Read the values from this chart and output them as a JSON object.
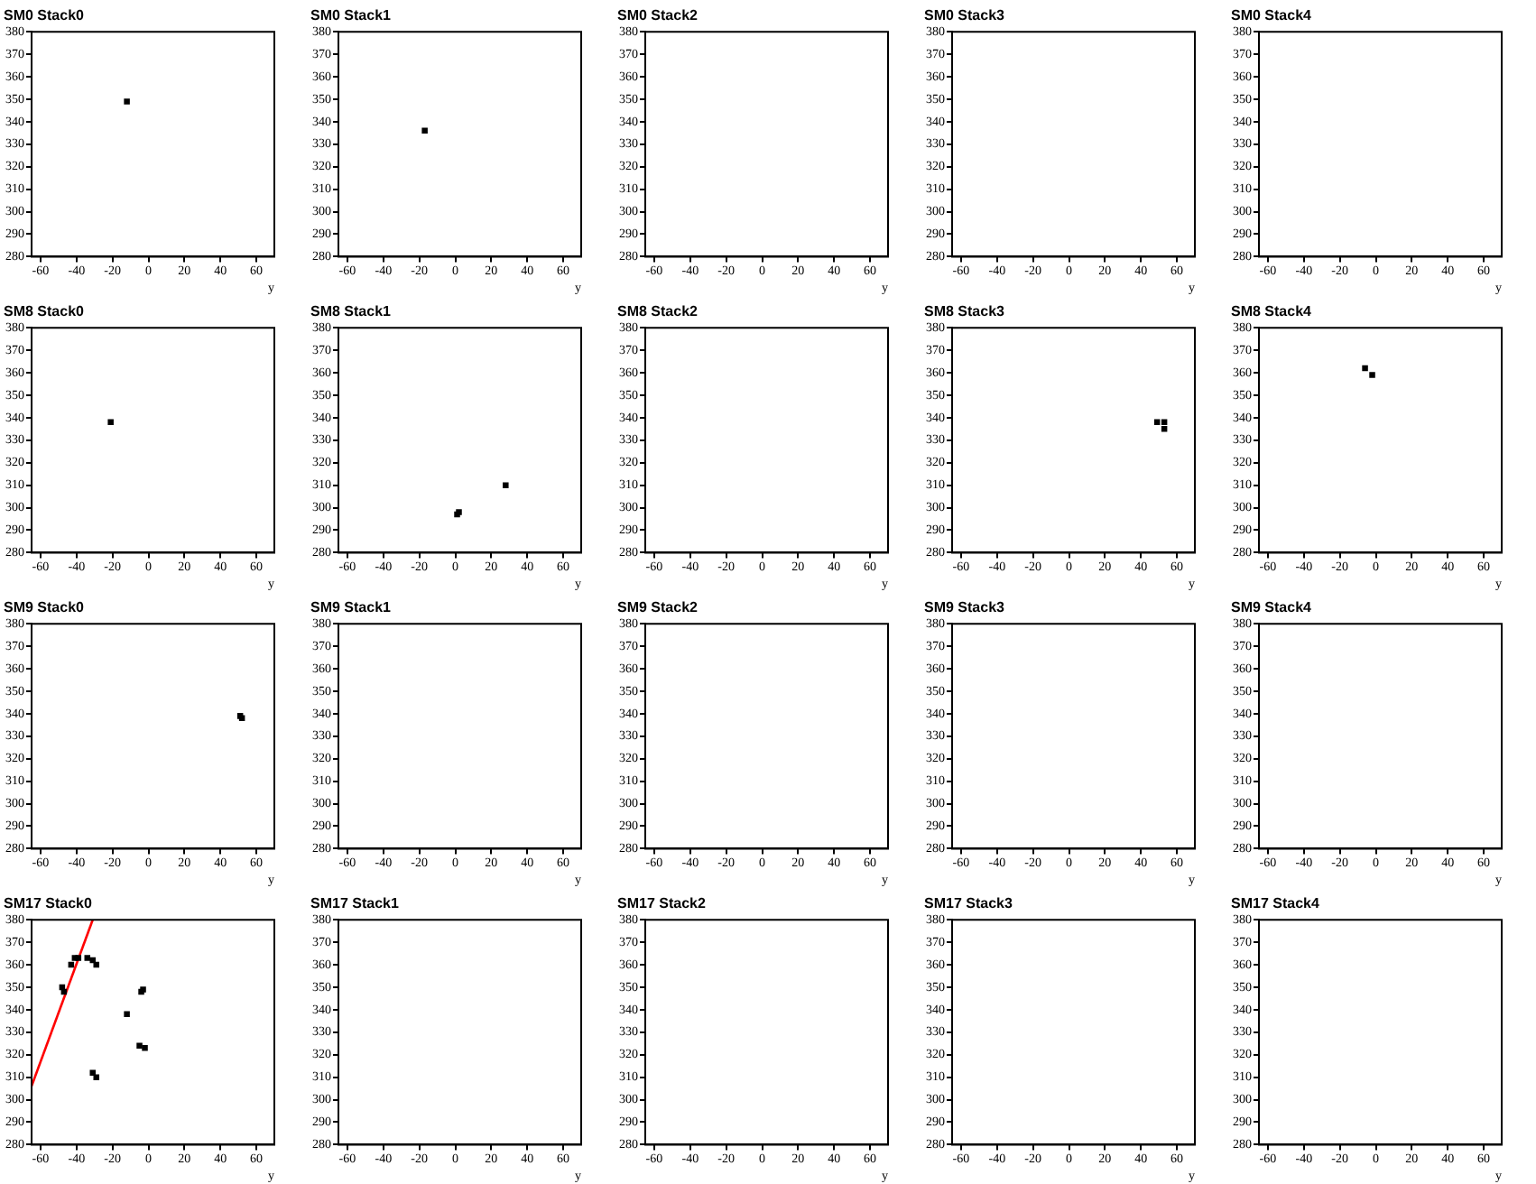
{
  "chart_data": [
    {
      "type": "scatter",
      "title": "SM0 Stack0",
      "xlabel": "y",
      "xlim": [
        -65,
        70
      ],
      "ylim": [
        280,
        380
      ],
      "xticks": [
        -60,
        -40,
        -20,
        0,
        20,
        40,
        60
      ],
      "yticks": [
        280,
        290,
        300,
        310,
        320,
        330,
        340,
        350,
        360,
        370,
        380
      ],
      "marker": "square",
      "series": [
        {
          "color": "#000000",
          "x": [
            -12
          ],
          "values": [
            349
          ]
        }
      ]
    },
    {
      "type": "scatter",
      "title": "SM0 Stack1",
      "xlabel": "y",
      "xlim": [
        -65,
        70
      ],
      "ylim": [
        280,
        380
      ],
      "xticks": [
        -60,
        -40,
        -20,
        0,
        20,
        40,
        60
      ],
      "yticks": [
        280,
        290,
        300,
        310,
        320,
        330,
        340,
        350,
        360,
        370,
        380
      ],
      "marker": "square",
      "series": [
        {
          "color": "#000000",
          "x": [
            -17
          ],
          "values": [
            336
          ]
        }
      ]
    },
    {
      "type": "scatter",
      "title": "SM0 Stack2",
      "xlabel": "y",
      "xlim": [
        -65,
        70
      ],
      "ylim": [
        280,
        380
      ],
      "xticks": [
        -60,
        -40,
        -20,
        0,
        20,
        40,
        60
      ],
      "yticks": [
        280,
        290,
        300,
        310,
        320,
        330,
        340,
        350,
        360,
        370,
        380
      ]
    },
    {
      "type": "scatter",
      "title": "SM0 Stack3",
      "xlabel": "y",
      "xlim": [
        -65,
        70
      ],
      "ylim": [
        280,
        380
      ],
      "xticks": [
        -60,
        -40,
        -20,
        0,
        20,
        40,
        60
      ],
      "yticks": [
        280,
        290,
        300,
        310,
        320,
        330,
        340,
        350,
        360,
        370,
        380
      ]
    },
    {
      "type": "scatter",
      "title": "SM0 Stack4",
      "xlabel": "y",
      "xlim": [
        -65,
        70
      ],
      "ylim": [
        280,
        380
      ],
      "xticks": [
        -60,
        -40,
        -20,
        0,
        20,
        40,
        60
      ],
      "yticks": [
        280,
        290,
        300,
        310,
        320,
        330,
        340,
        350,
        360,
        370,
        380
      ]
    },
    {
      "type": "scatter",
      "title": "SM8 Stack0",
      "xlabel": "y",
      "xlim": [
        -65,
        70
      ],
      "ylim": [
        280,
        380
      ],
      "xticks": [
        -60,
        -40,
        -20,
        0,
        20,
        40,
        60
      ],
      "yticks": [
        280,
        290,
        300,
        310,
        320,
        330,
        340,
        350,
        360,
        370,
        380
      ],
      "marker": "square",
      "series": [
        {
          "color": "#000000",
          "x": [
            -21
          ],
          "values": [
            338
          ]
        }
      ]
    },
    {
      "type": "scatter",
      "title": "SM8 Stack1",
      "xlabel": "y",
      "xlim": [
        -65,
        70
      ],
      "ylim": [
        280,
        380
      ],
      "xticks": [
        -60,
        -40,
        -20,
        0,
        20,
        40,
        60
      ],
      "yticks": [
        280,
        290,
        300,
        310,
        320,
        330,
        340,
        350,
        360,
        370,
        380
      ],
      "marker": "square",
      "series": [
        {
          "color": "#000000",
          "x": [
            1,
            2,
            28
          ],
          "values": [
            297,
            298,
            310
          ]
        }
      ]
    },
    {
      "type": "scatter",
      "title": "SM8 Stack2",
      "xlabel": "y",
      "xlim": [
        -65,
        70
      ],
      "ylim": [
        280,
        380
      ],
      "xticks": [
        -60,
        -40,
        -20,
        0,
        20,
        40,
        60
      ],
      "yticks": [
        280,
        290,
        300,
        310,
        320,
        330,
        340,
        350,
        360,
        370,
        380
      ]
    },
    {
      "type": "scatter",
      "title": "SM8 Stack3",
      "xlabel": "y",
      "xlim": [
        -65,
        70
      ],
      "ylim": [
        280,
        380
      ],
      "xticks": [
        -60,
        -40,
        -20,
        0,
        20,
        40,
        60
      ],
      "yticks": [
        280,
        290,
        300,
        310,
        320,
        330,
        340,
        350,
        360,
        370,
        380
      ],
      "marker": "square",
      "series": [
        {
          "color": "#000000",
          "x": [
            49,
            53,
            53
          ],
          "values": [
            338,
            338,
            335
          ]
        }
      ]
    },
    {
      "type": "scatter",
      "title": "SM8 Stack4",
      "xlabel": "y",
      "xlim": [
        -65,
        70
      ],
      "ylim": [
        280,
        380
      ],
      "xticks": [
        -60,
        -40,
        -20,
        0,
        20,
        40,
        60
      ],
      "yticks": [
        280,
        290,
        300,
        310,
        320,
        330,
        340,
        350,
        360,
        370,
        380
      ],
      "marker": "square",
      "series": [
        {
          "color": "#000000",
          "x": [
            -6,
            -2
          ],
          "values": [
            362,
            359
          ]
        }
      ]
    },
    {
      "type": "scatter",
      "title": "SM9 Stack0",
      "xlabel": "y",
      "xlim": [
        -65,
        70
      ],
      "ylim": [
        280,
        380
      ],
      "xticks": [
        -60,
        -40,
        -20,
        0,
        20,
        40,
        60
      ],
      "yticks": [
        280,
        290,
        300,
        310,
        320,
        330,
        340,
        350,
        360,
        370,
        380
      ],
      "marker": "square",
      "series": [
        {
          "color": "#000000",
          "x": [
            51,
            52
          ],
          "values": [
            339,
            338
          ]
        }
      ]
    },
    {
      "type": "scatter",
      "title": "SM9 Stack1",
      "xlabel": "y",
      "xlim": [
        -65,
        70
      ],
      "ylim": [
        280,
        380
      ],
      "xticks": [
        -60,
        -40,
        -20,
        0,
        20,
        40,
        60
      ],
      "yticks": [
        280,
        290,
        300,
        310,
        320,
        330,
        340,
        350,
        360,
        370,
        380
      ]
    },
    {
      "type": "scatter",
      "title": "SM9 Stack2",
      "xlabel": "y",
      "xlim": [
        -65,
        70
      ],
      "ylim": [
        280,
        380
      ],
      "xticks": [
        -60,
        -40,
        -20,
        0,
        20,
        40,
        60
      ],
      "yticks": [
        280,
        290,
        300,
        310,
        320,
        330,
        340,
        350,
        360,
        370,
        380
      ]
    },
    {
      "type": "scatter",
      "title": "SM9 Stack3",
      "xlabel": "y",
      "xlim": [
        -65,
        70
      ],
      "ylim": [
        280,
        380
      ],
      "xticks": [
        -60,
        -40,
        -20,
        0,
        20,
        40,
        60
      ],
      "yticks": [
        280,
        290,
        300,
        310,
        320,
        330,
        340,
        350,
        360,
        370,
        380
      ]
    },
    {
      "type": "scatter",
      "title": "SM9 Stack4",
      "xlabel": "y",
      "xlim": [
        -65,
        70
      ],
      "ylim": [
        280,
        380
      ],
      "xticks": [
        -60,
        -40,
        -20,
        0,
        20,
        40,
        60
      ],
      "yticks": [
        280,
        290,
        300,
        310,
        320,
        330,
        340,
        350,
        360,
        370,
        380
      ]
    },
    {
      "type": "scatter",
      "title": "SM17 Stack0",
      "xlabel": "y",
      "xlim": [
        -65,
        70
      ],
      "ylim": [
        280,
        380
      ],
      "xticks": [
        -60,
        -40,
        -20,
        0,
        20,
        40,
        60
      ],
      "yticks": [
        280,
        290,
        300,
        310,
        320,
        330,
        340,
        350,
        360,
        370,
        380
      ],
      "series": [
        {
          "color": "#000000",
          "marker": "square",
          "x": [
            -48,
            -47,
            -43,
            -41,
            -39,
            -34,
            -31,
            -29,
            -12,
            -3,
            -4,
            -5,
            -2,
            -31,
            -29
          ],
          "values": [
            350,
            348,
            360,
            363,
            363,
            363,
            362,
            360,
            338,
            349,
            348,
            324,
            323,
            312,
            310
          ]
        },
        {
          "type": "line",
          "color": "#ff0000",
          "x": [
            -65,
            -31
          ],
          "values": [
            306,
            380
          ]
        }
      ]
    },
    {
      "type": "scatter",
      "title": "SM17 Stack1",
      "xlabel": "y",
      "xlim": [
        -65,
        70
      ],
      "ylim": [
        280,
        380
      ],
      "xticks": [
        -60,
        -40,
        -20,
        0,
        20,
        40,
        60
      ],
      "yticks": [
        280,
        290,
        300,
        310,
        320,
        330,
        340,
        350,
        360,
        370,
        380
      ]
    },
    {
      "type": "scatter",
      "title": "SM17 Stack2",
      "xlabel": "y",
      "xlim": [
        -65,
        70
      ],
      "ylim": [
        280,
        380
      ],
      "xticks": [
        -60,
        -40,
        -20,
        0,
        20,
        40,
        60
      ],
      "yticks": [
        280,
        290,
        300,
        310,
        320,
        330,
        340,
        350,
        360,
        370,
        380
      ]
    },
    {
      "type": "scatter",
      "title": "SM17 Stack3",
      "xlabel": "y",
      "xlim": [
        -65,
        70
      ],
      "ylim": [
        280,
        380
      ],
      "xticks": [
        -60,
        -40,
        -20,
        0,
        20,
        40,
        60
      ],
      "yticks": [
        280,
        290,
        300,
        310,
        320,
        330,
        340,
        350,
        360,
        370,
        380
      ]
    },
    {
      "type": "scatter",
      "title": "SM17 Stack4",
      "xlabel": "y",
      "xlim": [
        -65,
        70
      ],
      "ylim": [
        280,
        380
      ],
      "xticks": [
        -60,
        -40,
        -20,
        0,
        20,
        40,
        60
      ],
      "yticks": [
        280,
        290,
        300,
        310,
        320,
        330,
        340,
        350,
        360,
        370,
        380
      ]
    }
  ]
}
